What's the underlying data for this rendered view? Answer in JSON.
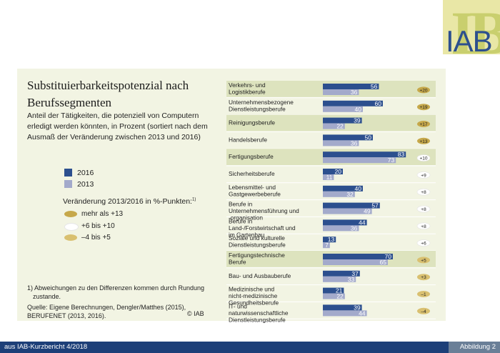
{
  "header": {
    "logo_text": "IAB"
  },
  "chart_data": {
    "type": "bar",
    "title": "Substituierbarkeitspotenzial nach Berufssegmenten",
    "subtitle": "Anteil der Tätigkeiten, die potenziell von Computern erledigt werden könnten, in Prozent (sortiert nach dem Ausmaß der Veränderung zwischen 2013 und 2016)",
    "categories": [
      "Verkehrs- und Logistikberufe",
      "Unternehmensbezogene Dienstleistungsberufe",
      "Reinigungsberufe",
      "Handelsberufe",
      "Fertigungsberufe",
      "Sicherheitsberufe",
      "Lebensmittel- und Gastgewerbeberufe",
      "Berufe in Unternehmensführung und -organisation",
      "Berufe in Land-/Forstwirtschaft und im Gartenbau",
      "Soziale und kulturelle Dienstleistungsberufe",
      "Fertigungstechnische Berufe",
      "Bau- und Ausbauberufe",
      "Medizinische und nicht-medizinische Gesundheitsberufe",
      "IT- und naturwissenschaftliche Dienstleistungsberufe"
    ],
    "series": [
      {
        "name": "2016",
        "color": "#2c4f8e",
        "values": [
          56,
          60,
          39,
          50,
          83,
          20,
          40,
          57,
          44,
          13,
          70,
          37,
          21,
          39
        ]
      },
      {
        "name": "2013",
        "color": "#a3aacb",
        "values": [
          36,
          40,
          22,
          36,
          73,
          11,
          32,
          49,
          36,
          7,
          65,
          33,
          22,
          44
        ]
      }
    ],
    "changes": [
      "+20",
      "+19",
      "+17",
      "+13",
      "+10",
      "+9",
      "+8",
      "+8",
      "+8",
      "+6",
      "+5",
      "+3",
      "–1",
      "–4"
    ],
    "change_class": [
      "big",
      "big",
      "big",
      "big",
      "mid",
      "mid",
      "mid",
      "mid",
      "mid",
      "mid",
      "small",
      "small",
      "small",
      "small"
    ],
    "change_colors": {
      "big": "#c6a84a",
      "mid": "#ffffff",
      "small": "#d9c070"
    },
    "xlim": [
      0,
      100
    ],
    "highlighted_rows": [
      0,
      2,
      4,
      10
    ],
    "row_highlight_color": "#dde3be"
  },
  "legend": {
    "label_2016": "2016",
    "label_2013": "2013",
    "color_2016": "#2c4f8e",
    "color_2013": "#a3aacb",
    "change_title": "Veränderung 2013/2016 in %-Punkten:",
    "change_sup": "1)",
    "change_items": [
      {
        "label": "mehr als +13",
        "color": "#c6a84a"
      },
      {
        "label": "+6 bis +10",
        "color": "#ffffff"
      },
      {
        "label": "–4 bis +5",
        "color": "#d9c070"
      }
    ]
  },
  "footnote": {
    "line1": "1) Abweichungen zu den Differenzen kommen durch Rundung",
    "line2": "zustande.",
    "source1": "Quelle: Eigene Berechnungen, Dengler/Matthes (2015),",
    "source2": "BERUFENET (2013, 2016).",
    "copyright": "© IAB"
  },
  "footer": {
    "left": "aus IAB-Kurzbericht 4/2018",
    "right": "Abbildung 2"
  }
}
